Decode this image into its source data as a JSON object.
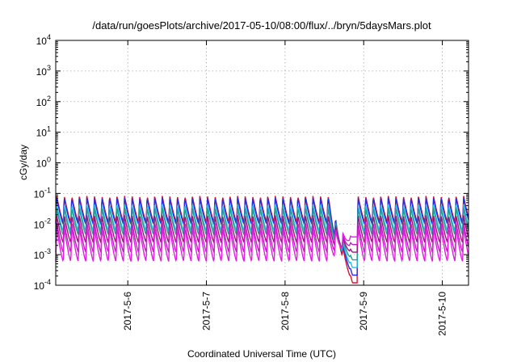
{
  "chart_data": {
    "type": "line",
    "title": "/data/run/goesPlots/archive/2017-05-10/08:00/flux/../bryn/5daysMars.plot",
    "xlabel": "Coordinated Universal Time (UTC)",
    "ylabel": "cGy/day",
    "log_y": true,
    "grid": true,
    "legend": "none",
    "x_range": [
      "2017-05-05 02:00",
      "2017-05-10 08:00"
    ],
    "ylim": [
      0.0001,
      10000
    ],
    "y_ticks": [
      {
        "value": 0.0001,
        "base": "10",
        "exp": "-4"
      },
      {
        "value": 0.001,
        "base": "10",
        "exp": "-3"
      },
      {
        "value": 0.01,
        "base": "10",
        "exp": "-2"
      },
      {
        "value": 0.1,
        "base": "10",
        "exp": "-1"
      },
      {
        "value": 1,
        "base": "10",
        "exp": "0"
      },
      {
        "value": 10,
        "base": "10",
        "exp": "1"
      },
      {
        "value": 100,
        "base": "10",
        "exp": "2"
      },
      {
        "value": 1000,
        "base": "10",
        "exp": "3"
      },
      {
        "value": 10000,
        "base": "10",
        "exp": "4"
      }
    ],
    "x_ticks": [
      {
        "date": "2017-05-06 00:00",
        "label": "2017-5-6"
      },
      {
        "date": "2017-05-07 00:00",
        "label": "2017-5-7"
      },
      {
        "date": "2017-05-08 00:00",
        "label": "2017-5-8"
      },
      {
        "date": "2017-05-09 00:00",
        "label": "2017-5-9"
      },
      {
        "date": "2017-05-10 00:00",
        "label": "2017-5-10"
      }
    ],
    "pattern": {
      "description": "sawtooth, period ~2.3 h, sharp rise then decay, fan of channels",
      "period_hours": 2.3,
      "peak_top": 0.08,
      "gap": {
        "start": "2017-05-08 16:00",
        "end": "2017-05-08 22:00",
        "min_value": 0.00012
      }
    },
    "series": [
      {
        "color": "#e01030",
        "peak": 0.085,
        "trough": 0.012
      },
      {
        "color": "#2030e0",
        "peak": 0.075,
        "trough": 0.01
      },
      {
        "color": "#20c0e0",
        "peak": 0.045,
        "trough": 0.006
      },
      {
        "color": "#20a090",
        "peak": 0.035,
        "trough": 0.0045
      },
      {
        "color": "#a01080",
        "peak": 0.02,
        "trough": 0.0025
      },
      {
        "color": "#c020c0",
        "peak": 0.012,
        "trough": 0.0012
      },
      {
        "color": "#e020e0",
        "peak": 0.008,
        "trough": 0.0006
      }
    ]
  }
}
